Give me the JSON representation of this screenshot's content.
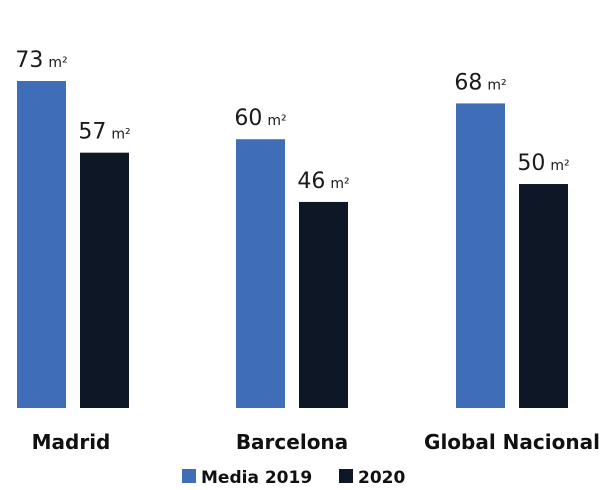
{
  "chart_data": {
    "type": "bar",
    "categories": [
      "Madrid",
      "Barcelona",
      "Global Nacional"
    ],
    "series": [
      {
        "name": "Media 2019",
        "values": [
          73,
          60,
          68
        ],
        "color": "#3F6DB8"
      },
      {
        "name": "2020",
        "values": [
          57,
          46,
          50
        ],
        "color": "#0E1726"
      }
    ],
    "unit": "m²",
    "ylim": [
      0,
      80
    ],
    "grid": false,
    "legend_position": "bottom-center"
  }
}
